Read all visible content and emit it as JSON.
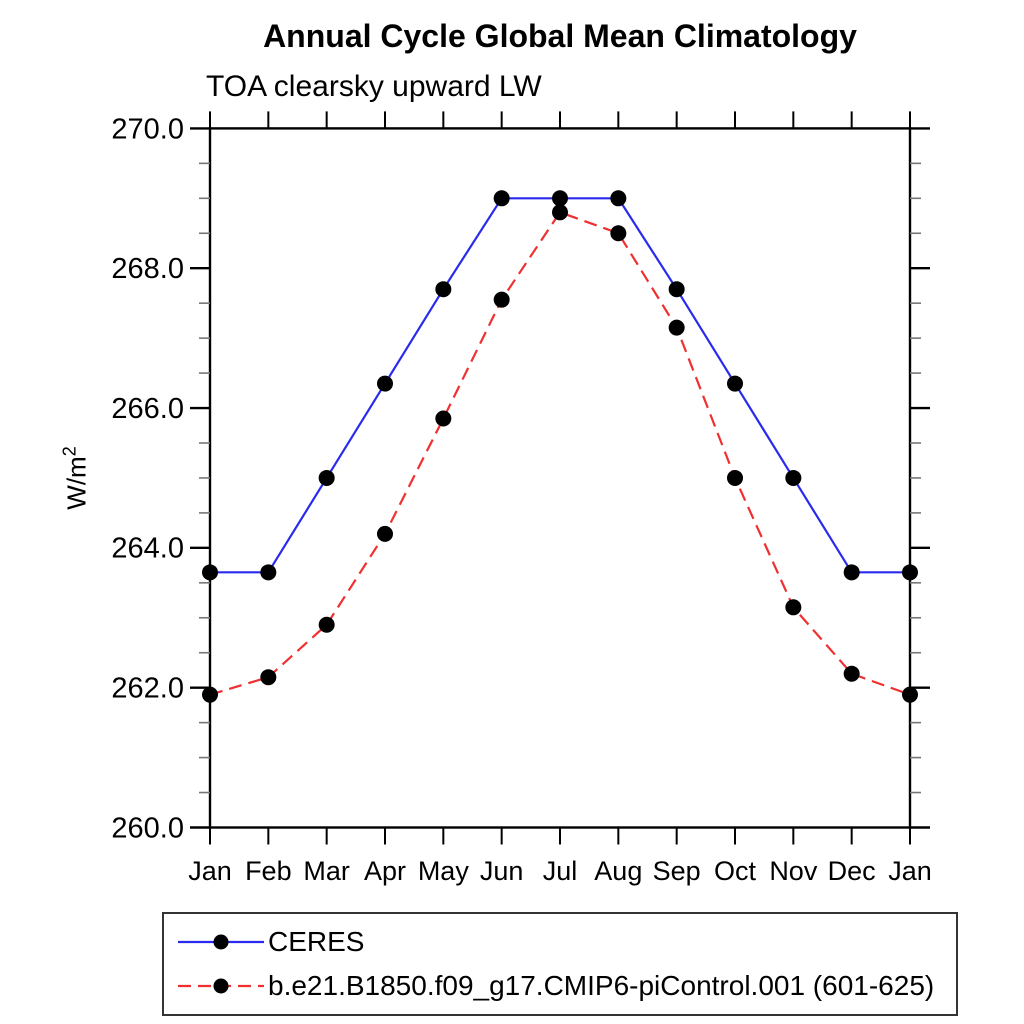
{
  "header": {
    "title": "Annual Cycle Global Mean Climatology",
    "subtitle": "TOA clearsky upward LW"
  },
  "y_axis": {
    "label_base": "W/m",
    "label_sup": "2"
  },
  "chart_data": {
    "type": "line",
    "title": "Annual Cycle Global Mean Climatology",
    "subtitle": "TOA clearsky upward LW",
    "xlabel": "",
    "ylabel": "W/m²",
    "x_categories": [
      "Jan",
      "Feb",
      "Mar",
      "Apr",
      "May",
      "Jun",
      "Jul",
      "Aug",
      "Sep",
      "Oct",
      "Nov",
      "Dec",
      "Jan"
    ],
    "ylim": [
      260.0,
      270.0
    ],
    "ytick_labels": [
      "260.0",
      "262.0",
      "264.0",
      "266.0",
      "268.0",
      "270.0"
    ],
    "ytick_major_values": [
      260.0,
      262.0,
      264.0,
      266.0,
      268.0,
      270.0
    ],
    "ytick_minor_step": 0.5,
    "grid": false,
    "legend_position": "below-plot-left",
    "axis_color": "#000000",
    "marker_color": "#000000",
    "series": [
      {
        "name": "CERES",
        "color": "#2a2aee",
        "line_style": "solid",
        "marker": "circle",
        "values": [
          263.65,
          263.65,
          265.0,
          266.35,
          267.7,
          269.0,
          269.0,
          269.0,
          267.7,
          266.35,
          265.0,
          263.65,
          263.65
        ]
      },
      {
        "name": "b.e21.B1850.f09_g17.CMIP6-piControl.001 (601-625)",
        "color": "#f03030",
        "line_style": "dashed",
        "marker": "circle",
        "values": [
          261.9,
          262.15,
          262.9,
          264.2,
          265.85,
          267.55,
          268.8,
          268.5,
          267.15,
          265.0,
          263.15,
          262.2,
          261.9
        ]
      }
    ]
  }
}
